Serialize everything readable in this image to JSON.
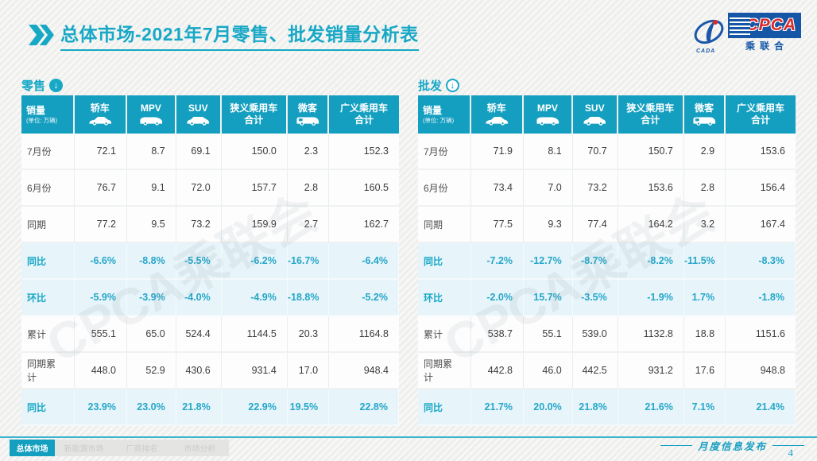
{
  "title": {
    "section": "总体市场",
    "rest": "-2021年7月零售、批发销量分析表"
  },
  "logo": {
    "cpca": "CPCA",
    "sub": "乘联合",
    "left_caption": "CADA"
  },
  "watermark": "CPCA乘联会",
  "columns": [
    {
      "label": "销量",
      "sub": "(单位: 万辆)"
    },
    {
      "label": "轿车",
      "icon": "sedan-icon"
    },
    {
      "label": "MPV",
      "icon": "mpv-icon"
    },
    {
      "label": "SUV",
      "icon": "suv-icon"
    },
    {
      "label": "狭义乘用车",
      "label2": "合计"
    },
    {
      "label": "微客",
      "icon": "minibus-icon"
    },
    {
      "label": "广义乘用车",
      "label2": "合计"
    }
  ],
  "tables": [
    {
      "name": "零售",
      "arrow_style": "filled",
      "rows": [
        {
          "label": "7月份",
          "type": "value",
          "cells": [
            "72.1",
            "8.7",
            "69.1",
            "150.0",
            "2.3",
            "152.3"
          ]
        },
        {
          "label": "6月份",
          "type": "value",
          "cells": [
            "76.7",
            "9.1",
            "72.0",
            "157.7",
            "2.8",
            "160.5"
          ]
        },
        {
          "label": "同期",
          "type": "value",
          "cells": [
            "77.2",
            "9.5",
            "73.2",
            "159.9",
            "2.7",
            "162.7"
          ]
        },
        {
          "label": "同比",
          "type": "percent",
          "cells": [
            "-6.6%",
            "-8.8%",
            "-5.5%",
            "-6.2%",
            "-16.7%",
            "-6.4%"
          ]
        },
        {
          "label": "环比",
          "type": "percent",
          "cells": [
            "-5.9%",
            "-3.9%",
            "-4.0%",
            "-4.9%",
            "-18.8%",
            "-5.2%"
          ]
        },
        {
          "label": "累计",
          "type": "value",
          "cells": [
            "555.1",
            "65.0",
            "524.4",
            "1144.5",
            "20.3",
            "1164.8"
          ]
        },
        {
          "label": "同期累计",
          "type": "value",
          "cells": [
            "448.0",
            "52.9",
            "430.6",
            "931.4",
            "17.0",
            "948.4"
          ]
        },
        {
          "label": "同比",
          "type": "percent",
          "cells": [
            "23.9%",
            "23.0%",
            "21.8%",
            "22.9%",
            "19.5%",
            "22.8%"
          ]
        }
      ]
    },
    {
      "name": "批发",
      "arrow_style": "outline",
      "rows": [
        {
          "label": "7月份",
          "type": "value",
          "cells": [
            "71.9",
            "8.1",
            "70.7",
            "150.7",
            "2.9",
            "153.6"
          ]
        },
        {
          "label": "6月份",
          "type": "value",
          "cells": [
            "73.4",
            "7.0",
            "73.2",
            "153.6",
            "2.8",
            "156.4"
          ]
        },
        {
          "label": "同期",
          "type": "value",
          "cells": [
            "77.5",
            "9.3",
            "77.4",
            "164.2",
            "3.2",
            "167.4"
          ]
        },
        {
          "label": "同比",
          "type": "percent",
          "cells": [
            "-7.2%",
            "-12.7%",
            "-8.7%",
            "-8.2%",
            "-11.5%",
            "-8.3%"
          ]
        },
        {
          "label": "环比",
          "type": "percent",
          "cells": [
            "-2.0%",
            "15.7%",
            "-3.5%",
            "-1.9%",
            "1.7%",
            "-1.8%"
          ]
        },
        {
          "label": "累计",
          "type": "value",
          "cells": [
            "538.7",
            "55.1",
            "539.0",
            "1132.8",
            "18.8",
            "1151.6"
          ]
        },
        {
          "label": "同期累计",
          "type": "value",
          "cells": [
            "442.8",
            "46.0",
            "442.5",
            "931.2",
            "17.6",
            "948.8"
          ]
        },
        {
          "label": "同比",
          "type": "percent",
          "cells": [
            "21.7%",
            "20.0%",
            "21.8%",
            "21.6%",
            "7.1%",
            "21.4%"
          ]
        }
      ]
    }
  ],
  "footer": {
    "tabs": [
      {
        "label": "总体市场",
        "active": true
      },
      {
        "label": "新能源市场",
        "active": false
      },
      {
        "label": "厂商排名",
        "active": false
      },
      {
        "label": "市场分析",
        "active": false
      }
    ],
    "release_label": "月度信息发布",
    "page": "4"
  },
  "colors": {
    "teal": "#149fc0",
    "teal_text": "#25a7c9",
    "percent_row_bg": "#e7f4fa",
    "logo_blue": "#1557a6",
    "logo_red": "#d92b2b"
  }
}
